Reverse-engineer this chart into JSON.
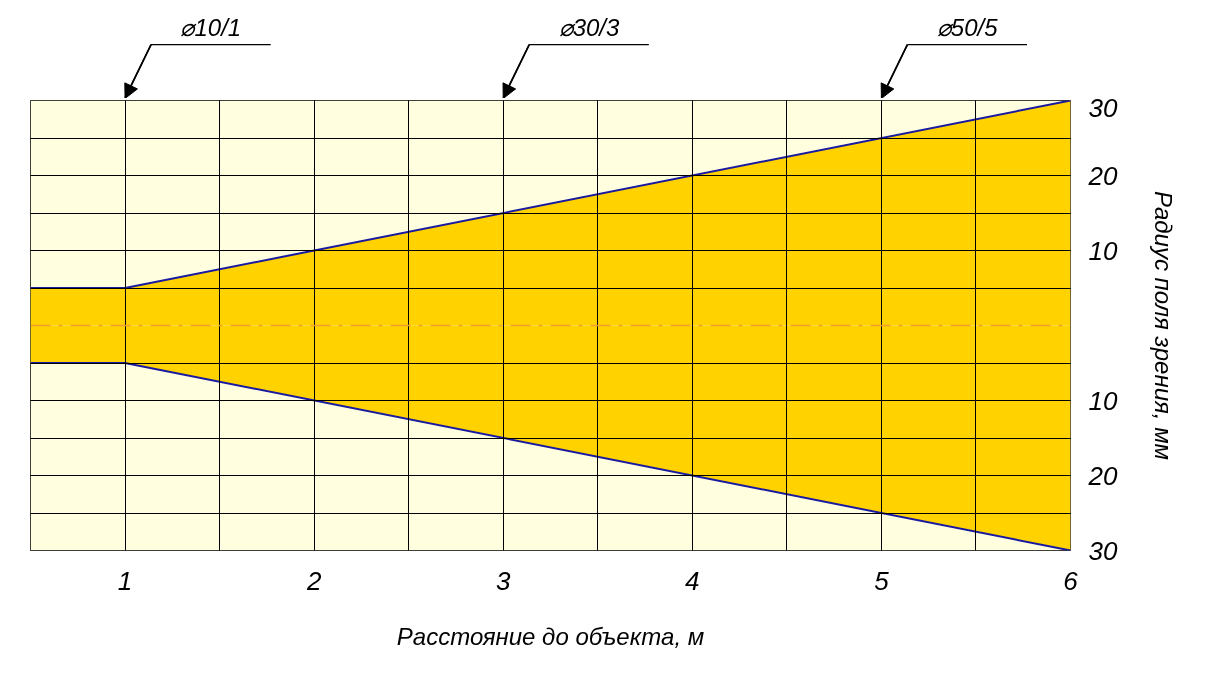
{
  "chart_data": {
    "type": "area",
    "xlabel": "Расстояние до объекта, м",
    "ylabel": "Радиус поля зрения, мм",
    "x": [
      0.5,
      1,
      6
    ],
    "series": [
      {
        "color": "#ffd200",
        "values": [
          5,
          5,
          30
        ]
      },
      {
        "color": "#ffd200",
        "values": [
          -5,
          -5,
          -30
        ]
      },
      {
        "type": "line",
        "color": "#1a1aa0",
        "values": [
          5,
          5,
          30
        ]
      },
      {
        "type": "line",
        "color": "#1a1aa0",
        "values": [
          -5,
          -5,
          -30
        ]
      }
    ],
    "xlim": [
      0.5,
      6
    ],
    "ylim": [
      -30,
      30
    ],
    "xticks": [
      1,
      {
        "value": 1.5,
        "label": null
      },
      2,
      {
        "value": 2.5,
        "label": null
      },
      3,
      {
        "value": 3.5,
        "label": null
      },
      4,
      {
        "value": 4.5,
        "label": null
      },
      5,
      {
        "value": 5.5,
        "label": null
      },
      6
    ],
    "yticks": [
      {
        "value": -30,
        "label": "30"
      },
      {
        "value": -25,
        "label": null
      },
      {
        "value": -20,
        "label": "20"
      },
      {
        "value": -15,
        "label": null
      },
      {
        "value": -10,
        "label": "10"
      },
      {
        "value": -5,
        "label": null
      },
      {
        "value": 5,
        "label": null
      },
      10,
      {
        "value": 15,
        "label": null
      },
      20,
      {
        "value": 25,
        "label": null
      },
      30
    ],
    "grid": true,
    "ref_lines": [
      {
        "axis": "y",
        "value": 0,
        "color": "#f0a030",
        "line_style": "dashed"
      }
    ],
    "bands": [
      {
        "axis": "y",
        "from": -30,
        "to": 30,
        "color": "#ffffe0"
      }
    ],
    "annotations": [
      "⌀10/1",
      "⌀30/3",
      "⌀50/5"
    ]
  }
}
